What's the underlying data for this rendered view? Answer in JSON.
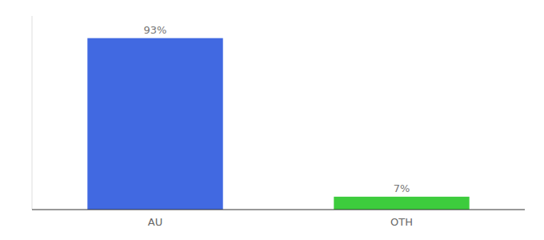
{
  "chart_data": {
    "type": "bar",
    "categories": [
      "AU",
      "OTH"
    ],
    "values": [
      93,
      7
    ],
    "value_labels": [
      "93%",
      "7%"
    ],
    "data_labels": true,
    "colors": [
      "#4169e1",
      "#3dcc3d"
    ],
    "ylim": [
      0,
      105
    ],
    "tick_labels": "x",
    "grid": false
  }
}
